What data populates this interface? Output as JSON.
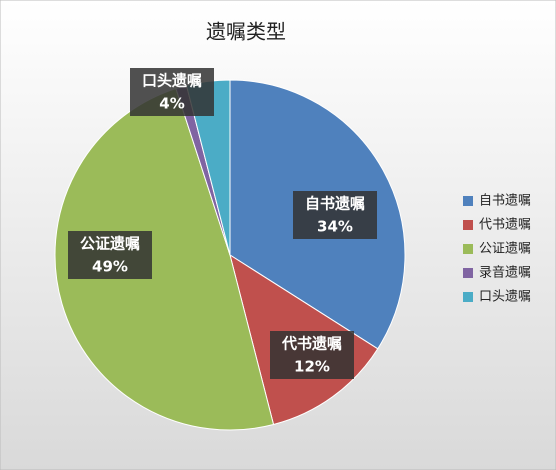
{
  "chart_data": {
    "type": "pie",
    "title": "遗嘱类型",
    "categories": [
      "自书遗嘱",
      "代书遗嘱",
      "公证遗嘱",
      "录音遗嘱",
      "口头遗嘱"
    ],
    "values": [
      34,
      12,
      49,
      1,
      4
    ],
    "value_labels": [
      "34%",
      "12%",
      "49%",
      null,
      "4%"
    ],
    "colors": [
      "#4f81bd",
      "#c0504d",
      "#9bbb59",
      "#8064a2",
      "#4bacc6"
    ],
    "legend": "right"
  }
}
